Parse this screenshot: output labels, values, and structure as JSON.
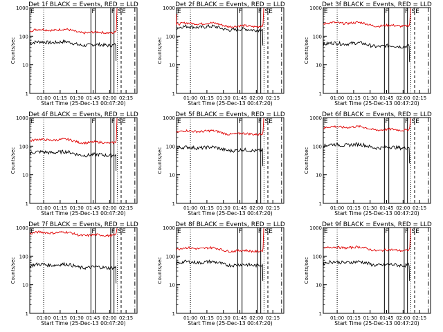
{
  "colors": {
    "events": "#000000",
    "lld": "#e00000",
    "background": "#ffffff"
  },
  "chart_data": {
    "type": "line",
    "grid_layout": {
      "rows": 3,
      "cols": 3
    },
    "y_scale": "log",
    "ylim": [
      1,
      1000
    ],
    "y_ticks": [
      "1",
      "10",
      "100",
      "1000"
    ],
    "x_ticks": [
      "01:00",
      "01:15",
      "01:30",
      "01:45",
      "02:00",
      "02:15"
    ],
    "ylabel": "Counts/sec",
    "xlabel": "Start Time (25-Dec-13 00:47:20)",
    "flag_labels": {
      "E": "E",
      "F": "F",
      "SE": "SE"
    },
    "panels": [
      {
        "title": "Det 1f BLACK = Events, RED = LLD",
        "events": 55,
        "lld": 150,
        "lld_end_jump": true
      },
      {
        "title": "Det 2f BLACK = Events, RED = LLD",
        "events": 190,
        "lld": 250,
        "lld_end_jump": true,
        "start_spike": true
      },
      {
        "title": "Det 3f BLACK = Events, RED = LLD",
        "events": 50,
        "lld": 260,
        "lld_end_jump": true
      },
      {
        "title": "Det 4f BLACK = Events, RED = LLD",
        "events": 55,
        "lld": 150,
        "lld_end_jump": true
      },
      {
        "title": "Det 5f BLACK = Events, RED = LLD",
        "events": 80,
        "lld": 300,
        "lld_end_jump": true
      },
      {
        "title": "Det 6f BLACK = Events, RED = LLD",
        "events": 100,
        "lld": 420,
        "lld_end_jump": true
      },
      {
        "title": "Det 7f BLACK = Events, RED = LLD",
        "events": 45,
        "lld": 600,
        "lld_end_jump": true
      },
      {
        "title": "Det 8f BLACK = Events, RED = LLD",
        "events": 55,
        "lld": 170,
        "lld_end_jump": true
      },
      {
        "title": "Det 9f BLACK = Events, RED = LLD",
        "events": 55,
        "lld": 180,
        "lld_end_jump": true
      }
    ]
  }
}
